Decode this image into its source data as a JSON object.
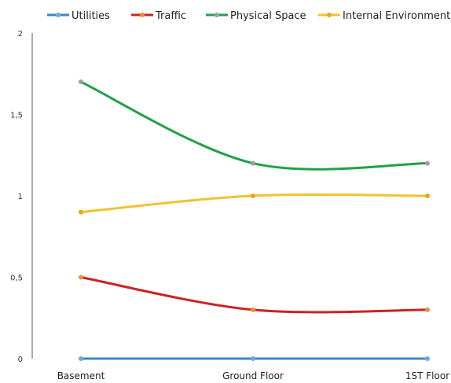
{
  "chart_data": {
    "type": "line",
    "categories": [
      "Basement",
      "Ground Floor",
      "1ST Floor"
    ],
    "ylim": [
      0,
      2
    ],
    "yticks": [
      0,
      0.5,
      1,
      1.5,
      2
    ],
    "ytick_labels": [
      "0",
      "0,5",
      "1",
      "1,5",
      "2"
    ],
    "grid": false,
    "legend": "top",
    "smooth": true,
    "series": [
      {
        "name": "Utilities",
        "values": [
          0,
          0,
          0
        ],
        "color": "#3d85c6",
        "marker_color": "#6fa8dc"
      },
      {
        "name": "Traffic",
        "values": [
          0.5,
          0.3,
          0.3
        ],
        "color": "#cc2222",
        "marker_color": "#e69138"
      },
      {
        "name": "Physical Space",
        "values": [
          1.7,
          1.2,
          1.2
        ],
        "color": "#22a04a",
        "marker_color": "#9e9e9e"
      },
      {
        "name": "Internal Environment",
        "values": [
          0.9,
          1.0,
          1.0
        ],
        "color": "#f1c232",
        "marker_color": "#e6a817"
      }
    ]
  }
}
